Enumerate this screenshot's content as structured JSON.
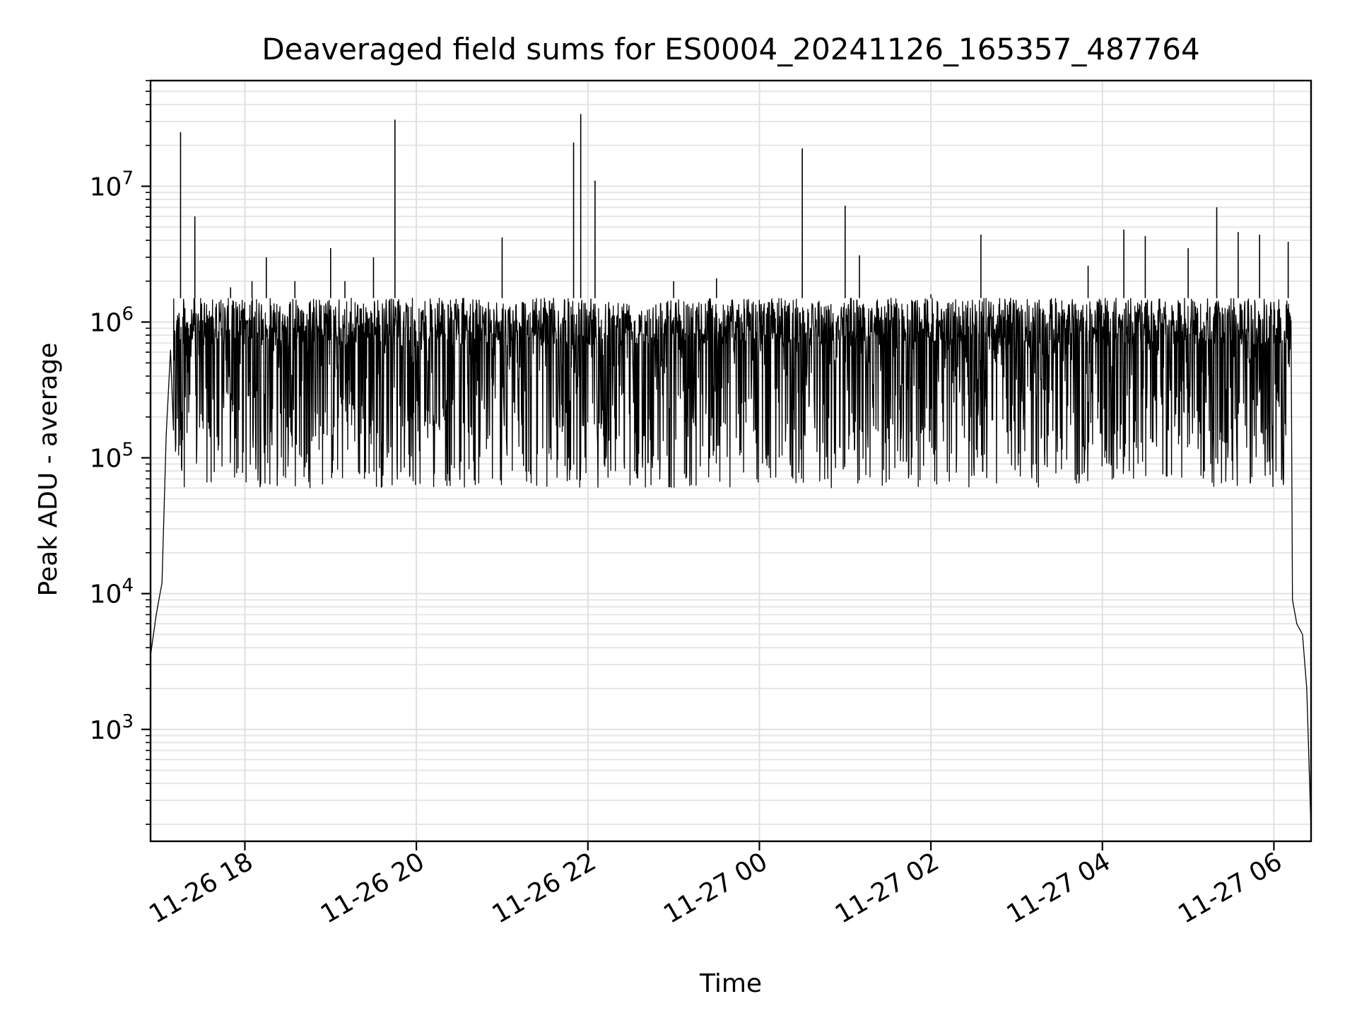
{
  "chart_data": {
    "type": "line",
    "title": "Deaveraged field sums for ES0004_20241126_165357_487764",
    "xlabel": "Time",
    "ylabel": "Peak ADU - average",
    "y_scale": "log",
    "ylim": [
      150,
      60000000
    ],
    "xlim": [
      "2024-11-26 16:54",
      "2024-11-27 06:26"
    ],
    "grid": true,
    "x_ticks": [
      {
        "value": "2024-11-26 18:00",
        "label": "11-26 18"
      },
      {
        "value": "2024-11-26 20:00",
        "label": "11-26 20"
      },
      {
        "value": "2024-11-26 22:00",
        "label": "11-26 22"
      },
      {
        "value": "2024-11-27 00:00",
        "label": "11-27 00"
      },
      {
        "value": "2024-11-27 02:00",
        "label": "11-27 02"
      },
      {
        "value": "2024-11-27 04:00",
        "label": "11-27 04"
      },
      {
        "value": "2024-11-27 06:00",
        "label": "11-27 06"
      }
    ],
    "y_ticks": [
      {
        "value": 1000,
        "base": "10",
        "exp": "3"
      },
      {
        "value": 10000,
        "base": "10",
        "exp": "4"
      },
      {
        "value": 100000,
        "base": "10",
        "exp": "5"
      },
      {
        "value": 1000000,
        "base": "10",
        "exp": "6"
      },
      {
        "value": 10000000,
        "base": "10",
        "exp": "7"
      }
    ],
    "series": [
      {
        "color": "#000000",
        "band_low": 60000,
        "band_high": 1500000,
        "x": [
          "2024-11-26 16:54",
          "2024-11-26 16:58",
          "2024-11-26 17:02",
          "2024-11-26 17:05",
          "2024-11-26 17:09",
          "2024-11-26 17:12",
          "2024-11-26 17:15",
          "2024-11-26 17:17",
          "2024-11-26 17:25",
          "2024-11-26 17:35",
          "2024-11-26 17:50",
          "2024-11-26 18:05",
          "2024-11-26 18:15",
          "2024-11-26 18:35",
          "2024-11-26 19:00",
          "2024-11-26 19:10",
          "2024-11-26 19:30",
          "2024-11-26 19:45",
          "2024-11-26 20:00",
          "2024-11-26 20:30",
          "2024-11-26 21:00",
          "2024-11-26 21:30",
          "2024-11-26 21:50",
          "2024-11-26 21:55",
          "2024-11-26 22:05",
          "2024-11-26 22:30",
          "2024-11-26 23:00",
          "2024-11-26 23:30",
          "2024-11-27 00:00",
          "2024-11-27 00:30",
          "2024-11-27 00:32",
          "2024-11-27 01:00",
          "2024-11-27 01:10",
          "2024-11-27 01:30",
          "2024-11-27 02:00",
          "2024-11-27 02:30",
          "2024-11-27 02:35",
          "2024-11-27 03:00",
          "2024-11-27 03:30",
          "2024-11-27 03:50",
          "2024-11-27 04:15",
          "2024-11-27 04:30",
          "2024-11-27 05:00",
          "2024-11-27 05:20",
          "2024-11-27 05:35",
          "2024-11-27 05:50",
          "2024-11-27 06:05",
          "2024-11-27 06:10",
          "2024-11-27 06:13",
          "2024-11-27 06:16",
          "2024-11-27 06:20",
          "2024-11-27 06:23",
          "2024-11-27 06:26"
        ],
        "y": [
          3500,
          7000,
          12000,
          150000,
          1000000,
          1200000,
          25000000,
          800000,
          6000000,
          1500000,
          1800000,
          2000000,
          3000000,
          2000000,
          3500000,
          2000000,
          3000000,
          31000000,
          1500000,
          1500000,
          4200000,
          1500000,
          21000000,
          34000000,
          11000000,
          1500000,
          2000000,
          2100000,
          1500000,
          19000000,
          1500000,
          7200000,
          3100000,
          1500000,
          1600000,
          1500000,
          4400000,
          1500000,
          1500000,
          2600000,
          4800000,
          4300000,
          3500000,
          7000000,
          4600000,
          4400000,
          1400000,
          3900000,
          9000,
          6000,
          5000,
          2000,
          180
        ]
      }
    ]
  }
}
